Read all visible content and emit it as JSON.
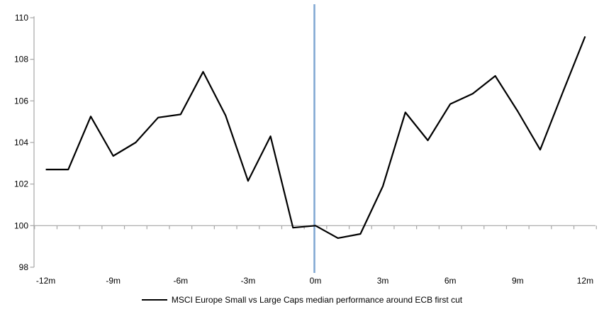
{
  "chart_data": {
    "type": "line",
    "title": "",
    "xlabel": "",
    "ylabel": "",
    "x_months": [
      -12,
      -11,
      -10,
      -9,
      -8,
      -7,
      -6,
      -5,
      -4,
      -3,
      -2,
      -1,
      0,
      1,
      2,
      3,
      4,
      5,
      6,
      7,
      8,
      9,
      10,
      11,
      12
    ],
    "series": [
      {
        "name": "MSCI Europe Small vs Large Caps median performance around ECB first cut",
        "color": "#000000",
        "values": [
          102.7,
          102.7,
          105.25,
          103.35,
          104.0,
          105.2,
          105.35,
          107.4,
          105.3,
          102.15,
          104.3,
          99.9,
          100.0,
          99.4,
          99.6,
          101.9,
          105.45,
          104.1,
          105.85,
          106.35,
          107.2,
          105.5,
          103.65,
          106.4,
          109.1
        ]
      }
    ],
    "ylim": [
      98,
      110
    ],
    "yticks": [
      98,
      100,
      102,
      104,
      106,
      108,
      110
    ],
    "xticks": [
      {
        "month": -12,
        "label": "-12m"
      },
      {
        "month": -9,
        "label": "-9m"
      },
      {
        "month": -6,
        "label": "-6m"
      },
      {
        "month": -3,
        "label": "-3m"
      },
      {
        "month": 0,
        "label": "0m"
      },
      {
        "month": 3,
        "label": "3m"
      },
      {
        "month": 6,
        "label": "6m"
      },
      {
        "month": 9,
        "label": "9m"
      },
      {
        "month": 12,
        "label": "12m"
      }
    ],
    "baseline_value": 100,
    "event_line": {
      "x_month": 0,
      "color": "#7EA6D2"
    },
    "axis_color": "#A6A6A6",
    "grid": false,
    "legend_position": "bottom-center"
  }
}
